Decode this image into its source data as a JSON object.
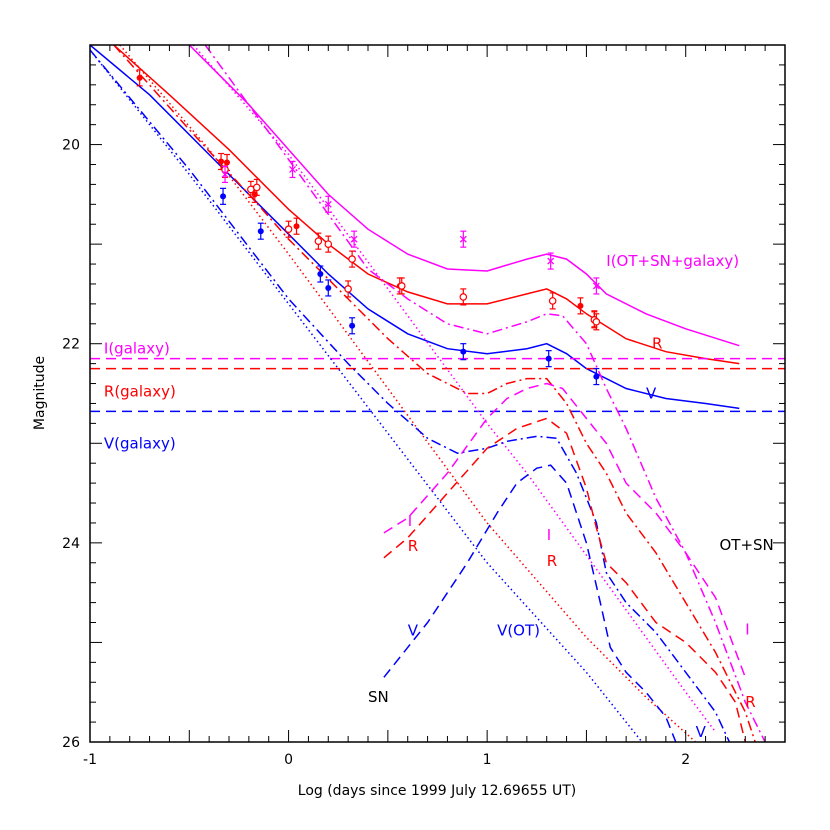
{
  "chart_data": {
    "type": "line",
    "xlabel": "Log (days since 1999 July 12.69655 UT)",
    "ylabel": "Magnitude",
    "xlim": [
      -1,
      2.5
    ],
    "ylim": [
      26,
      19
    ],
    "y_inverted": true,
    "grid": false,
    "x_ticks": [
      "-1",
      "0",
      "1",
      "2"
    ],
    "y_ticks": [
      "20",
      "22",
      "24",
      "26"
    ],
    "colors": {
      "I": "#ff00ff",
      "R": "#ff0000",
      "V": "#0000ff",
      "black": "#000000"
    },
    "series": [
      {
        "band": "I",
        "style": "solid",
        "points": [
          [
            -0.5,
            19.0
          ],
          [
            -0.2,
            19.6
          ],
          [
            0.0,
            20.05
          ],
          [
            0.2,
            20.5
          ],
          [
            0.4,
            20.85
          ],
          [
            0.6,
            21.1
          ],
          [
            0.8,
            21.25
          ],
          [
            1.0,
            21.27
          ],
          [
            1.2,
            21.15
          ],
          [
            1.3,
            21.1
          ],
          [
            1.4,
            21.15
          ],
          [
            1.5,
            21.3
          ],
          [
            1.6,
            21.5
          ],
          [
            1.8,
            21.7
          ],
          [
            2.0,
            21.85
          ],
          [
            2.27,
            22.02
          ]
        ]
      },
      {
        "band": "R",
        "style": "solid",
        "points": [
          [
            -0.88,
            19.0
          ],
          [
            -0.6,
            19.5
          ],
          [
            -0.3,
            20.05
          ],
          [
            0.0,
            20.65
          ],
          [
            0.2,
            21.0
          ],
          [
            0.4,
            21.3
          ],
          [
            0.6,
            21.48
          ],
          [
            0.8,
            21.6
          ],
          [
            1.0,
            21.6
          ],
          [
            1.2,
            21.5
          ],
          [
            1.3,
            21.45
          ],
          [
            1.4,
            21.55
          ],
          [
            1.5,
            21.7
          ],
          [
            1.7,
            21.95
          ],
          [
            1.9,
            22.08
          ],
          [
            2.1,
            22.15
          ],
          [
            2.27,
            22.2
          ]
        ]
      },
      {
        "band": "V",
        "style": "solid",
        "points": [
          [
            -1.0,
            19.0
          ],
          [
            -0.7,
            19.5
          ],
          [
            -0.4,
            20.1
          ],
          [
            -0.2,
            20.5
          ],
          [
            0.0,
            20.9
          ],
          [
            0.2,
            21.3
          ],
          [
            0.4,
            21.65
          ],
          [
            0.6,
            21.9
          ],
          [
            0.8,
            22.05
          ],
          [
            1.0,
            22.1
          ],
          [
            1.2,
            22.05
          ],
          [
            1.3,
            22.0
          ],
          [
            1.4,
            22.1
          ],
          [
            1.5,
            22.25
          ],
          [
            1.7,
            22.45
          ],
          [
            1.9,
            22.55
          ],
          [
            2.1,
            22.6
          ],
          [
            2.27,
            22.65
          ]
        ]
      },
      {
        "band": "I",
        "style": "dashed",
        "points": [
          [
            -1.0,
            22.15
          ],
          [
            2.5,
            22.15
          ]
        ]
      },
      {
        "band": "R",
        "style": "dashed",
        "points": [
          [
            -1.0,
            22.25
          ],
          [
            2.5,
            22.25
          ]
        ]
      },
      {
        "band": "V",
        "style": "dashed",
        "points": [
          [
            -1.0,
            22.68
          ],
          [
            2.5,
            22.68
          ]
        ]
      },
      {
        "band": "I",
        "style": "dotted",
        "points": [
          [
            -0.48,
            19.0
          ],
          [
            0.0,
            20.1
          ],
          [
            0.5,
            21.45
          ],
          [
            1.0,
            22.8
          ],
          [
            1.2,
            23.3
          ],
          [
            1.4,
            23.85
          ],
          [
            1.6,
            24.4
          ],
          [
            1.8,
            24.95
          ],
          [
            2.0,
            25.5
          ],
          [
            2.15,
            25.9
          ]
        ]
      },
      {
        "band": "R",
        "style": "dotted",
        "points": [
          [
            -0.85,
            19.0
          ],
          [
            -0.4,
            20.05
          ],
          [
            0.0,
            21.1
          ],
          [
            0.5,
            22.45
          ],
          [
            1.0,
            23.8
          ],
          [
            1.5,
            24.95
          ],
          [
            1.8,
            25.55
          ],
          [
            2.05,
            26.0
          ]
        ]
      },
      {
        "band": "V",
        "style": "dotted",
        "points": [
          [
            -1.0,
            19.05
          ],
          [
            -0.5,
            20.3
          ],
          [
            0.0,
            21.6
          ],
          [
            0.5,
            22.9
          ],
          [
            1.0,
            24.2
          ],
          [
            1.5,
            25.3
          ],
          [
            1.78,
            26.0
          ]
        ]
      },
      {
        "band": "I",
        "style": "dashdot",
        "points": [
          [
            -0.42,
            19.0
          ],
          [
            0.0,
            20.15
          ],
          [
            0.4,
            21.25
          ],
          [
            0.6,
            21.55
          ],
          [
            0.8,
            21.8
          ],
          [
            1.0,
            21.9
          ],
          [
            1.2,
            21.78
          ],
          [
            1.3,
            21.7
          ],
          [
            1.38,
            21.72
          ],
          [
            1.5,
            22.0
          ],
          [
            1.6,
            22.45
          ],
          [
            1.7,
            22.85
          ],
          [
            1.85,
            23.55
          ],
          [
            2.0,
            24.1
          ],
          [
            2.15,
            24.8
          ],
          [
            2.3,
            25.6
          ],
          [
            2.4,
            26.0
          ]
        ]
      },
      {
        "band": "R",
        "style": "dashdot",
        "points": [
          [
            -0.88,
            19.0
          ],
          [
            -0.5,
            19.85
          ],
          [
            -0.2,
            20.5
          ],
          [
            0.0,
            20.95
          ],
          [
            0.3,
            21.55
          ],
          [
            0.5,
            21.95
          ],
          [
            0.7,
            22.3
          ],
          [
            0.9,
            22.5
          ],
          [
            1.0,
            22.5
          ],
          [
            1.1,
            22.4
          ],
          [
            1.2,
            22.35
          ],
          [
            1.3,
            22.35
          ],
          [
            1.4,
            22.6
          ],
          [
            1.5,
            23.0
          ],
          [
            1.6,
            23.3
          ],
          [
            1.7,
            23.7
          ],
          [
            1.85,
            24.1
          ],
          [
            2.0,
            24.6
          ],
          [
            2.15,
            25.1
          ],
          [
            2.3,
            25.7
          ],
          [
            2.35,
            26.0
          ]
        ]
      },
      {
        "band": "V",
        "style": "dashdot",
        "points": [
          [
            -1.0,
            19.05
          ],
          [
            -0.5,
            20.25
          ],
          [
            0.0,
            21.55
          ],
          [
            0.3,
            22.2
          ],
          [
            0.5,
            22.6
          ],
          [
            0.7,
            22.95
          ],
          [
            0.85,
            23.1
          ],
          [
            1.0,
            23.05
          ],
          [
            1.1,
            22.98
          ],
          [
            1.25,
            22.93
          ],
          [
            1.35,
            22.95
          ],
          [
            1.45,
            23.3
          ],
          [
            1.55,
            23.8
          ],
          [
            1.6,
            24.3
          ],
          [
            1.7,
            24.6
          ],
          [
            1.85,
            24.9
          ],
          [
            2.0,
            25.3
          ],
          [
            2.15,
            25.7
          ],
          [
            2.22,
            26.0
          ]
        ]
      },
      {
        "band": "I",
        "style": "dashed",
        "points": [
          [
            0.48,
            23.9
          ],
          [
            0.6,
            23.75
          ],
          [
            0.8,
            23.3
          ],
          [
            1.0,
            22.75
          ],
          [
            1.1,
            22.55
          ],
          [
            1.2,
            22.45
          ],
          [
            1.3,
            22.4
          ],
          [
            1.38,
            22.45
          ],
          [
            1.5,
            22.75
          ],
          [
            1.6,
            23.0
          ],
          [
            1.7,
            23.4
          ],
          [
            1.85,
            23.7
          ],
          [
            2.0,
            24.1
          ],
          [
            2.15,
            24.55
          ],
          [
            2.3,
            25.35
          ]
        ]
      },
      {
        "band": "R",
        "style": "dashed",
        "points": [
          [
            0.48,
            24.15
          ],
          [
            0.6,
            23.95
          ],
          [
            0.8,
            23.5
          ],
          [
            1.0,
            23.05
          ],
          [
            1.15,
            22.85
          ],
          [
            1.3,
            22.75
          ],
          [
            1.4,
            22.9
          ],
          [
            1.5,
            23.45
          ],
          [
            1.55,
            23.85
          ],
          [
            1.6,
            24.2
          ],
          [
            1.7,
            24.4
          ],
          [
            1.85,
            24.8
          ],
          [
            2.0,
            25.0
          ],
          [
            2.15,
            25.3
          ],
          [
            2.25,
            25.6
          ],
          [
            2.3,
            26.0
          ]
        ]
      },
      {
        "band": "V",
        "style": "dashed",
        "points": [
          [
            0.48,
            25.35
          ],
          [
            0.7,
            24.8
          ],
          [
            0.9,
            24.2
          ],
          [
            1.05,
            23.7
          ],
          [
            1.15,
            23.4
          ],
          [
            1.25,
            23.25
          ],
          [
            1.32,
            23.22
          ],
          [
            1.4,
            23.4
          ],
          [
            1.5,
            24.0
          ],
          [
            1.57,
            24.6
          ],
          [
            1.62,
            25.05
          ],
          [
            1.7,
            25.3
          ],
          [
            1.8,
            25.5
          ],
          [
            1.9,
            25.75
          ],
          [
            1.95,
            26.0
          ]
        ]
      }
    ],
    "data_points": [
      {
        "band": "R",
        "marker": "filled",
        "points": [
          [
            -0.75,
            19.33
          ],
          [
            -0.34,
            20.17
          ],
          [
            -0.31,
            20.18
          ],
          [
            -0.17,
            20.5
          ],
          [
            0.04,
            20.82
          ],
          [
            0.56,
            21.42
          ],
          [
            1.47,
            21.62
          ],
          [
            1.54,
            21.75
          ]
        ]
      },
      {
        "band": "R",
        "marker": "open",
        "points": [
          [
            -0.32,
            20.25
          ],
          [
            -0.19,
            20.45
          ],
          [
            -0.16,
            20.43
          ],
          [
            0.0,
            20.85
          ],
          [
            0.15,
            20.97
          ],
          [
            0.2,
            21.0
          ],
          [
            0.3,
            21.45
          ],
          [
            0.32,
            21.15
          ],
          [
            0.57,
            21.42
          ],
          [
            0.88,
            21.53
          ],
          [
            1.33,
            21.57
          ],
          [
            1.54,
            21.76
          ],
          [
            1.55,
            21.78
          ]
        ]
      },
      {
        "band": "V",
        "marker": "filled",
        "points": [
          [
            -0.33,
            20.52
          ],
          [
            -0.14,
            20.87
          ],
          [
            0.16,
            21.3
          ],
          [
            0.2,
            21.44
          ],
          [
            0.32,
            21.82
          ],
          [
            0.88,
            22.08
          ],
          [
            1.31,
            22.15
          ],
          [
            1.55,
            22.33
          ]
        ]
      },
      {
        "band": "I",
        "marker": "cross",
        "points": [
          [
            -0.32,
            20.3
          ],
          [
            0.02,
            20.25
          ],
          [
            0.2,
            20.6
          ],
          [
            0.33,
            20.95
          ],
          [
            0.88,
            20.95
          ],
          [
            1.32,
            21.17
          ],
          [
            1.55,
            21.42
          ]
        ]
      }
    ],
    "labels": [
      {
        "text": "I(OT+SN+galaxy)",
        "band": "I",
        "x": 1.6,
        "y": 21.17
      },
      {
        "text": "R",
        "band": "R",
        "x": 1.83,
        "y": 22.0
      },
      {
        "text": "V",
        "band": "V",
        "x": 1.8,
        "y": 22.5
      },
      {
        "text": "I(galaxy)",
        "band": "I",
        "x": -0.93,
        "y": 22.05
      },
      {
        "text": "R(galaxy)",
        "band": "R",
        "x": -0.93,
        "y": 22.48
      },
      {
        "text": "V(galaxy)",
        "band": "V",
        "x": -0.93,
        "y": 23.0
      },
      {
        "text": "I",
        "band": "I",
        "x": 0.6,
        "y": 23.78
      },
      {
        "text": "R",
        "band": "R",
        "x": 0.6,
        "y": 24.03
      },
      {
        "text": "I",
        "band": "I",
        "x": 1.3,
        "y": 23.92
      },
      {
        "text": "R",
        "band": "R",
        "x": 1.3,
        "y": 24.18
      },
      {
        "text": "OT+SN",
        "band": "black",
        "x": 2.17,
        "y": 24.02
      },
      {
        "text": "V",
        "band": "V",
        "x": 0.6,
        "y": 24.88
      },
      {
        "text": "V(OT)",
        "band": "V",
        "x": 1.05,
        "y": 24.88
      },
      {
        "text": "I",
        "band": "I",
        "x": 2.3,
        "y": 24.87
      },
      {
        "text": "SN",
        "band": "black",
        "x": 0.4,
        "y": 25.55
      },
      {
        "text": "R",
        "band": "R",
        "x": 2.3,
        "y": 25.6
      },
      {
        "text": "V",
        "band": "V",
        "x": 2.05,
        "y": 25.9
      }
    ]
  }
}
